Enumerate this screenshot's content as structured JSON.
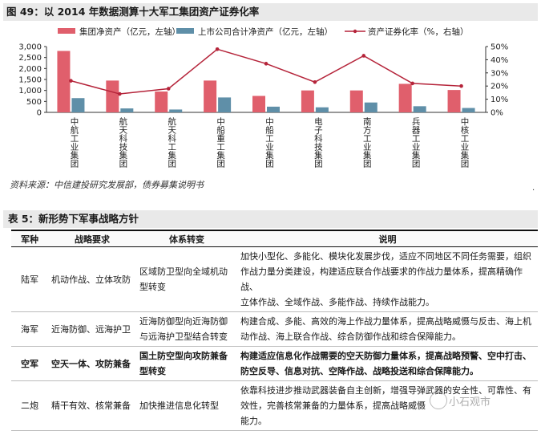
{
  "figure": {
    "title": "图 49：以 2014 年数据测算十大军工集团资产证券化率",
    "source": "资料来源：中信建投研究发展部，债券募集说明书",
    "side_mark": "·"
  },
  "chart_data": {
    "type": "bar",
    "title": "图 49：以 2014 年数据测算十大军工集团资产证券化率",
    "categories": [
      "中航工业集团",
      "航天科技集团",
      "航天科工集团",
      "中船重工集团",
      "中船工业集团",
      "电子科技集团",
      "南方工业集团",
      "兵器工业集团",
      "中核工业集团"
    ],
    "series": [
      {
        "name": "集团净资产（亿元，左轴）",
        "type": "bar",
        "axis": "left",
        "color": "#e05f6c",
        "values": [
          2800,
          1450,
          950,
          1450,
          750,
          1000,
          1000,
          1300,
          1020
        ]
      },
      {
        "name": "上市公司合计净资产（亿元，左轴）",
        "type": "bar",
        "axis": "left",
        "color": "#5f8fa8",
        "values": [
          650,
          180,
          130,
          680,
          260,
          230,
          450,
          280,
          200
        ]
      },
      {
        "name": "资产证券化率（%，右轴）",
        "type": "line",
        "axis": "right",
        "color": "#b5243a",
        "values": [
          24,
          14,
          18,
          48,
          37,
          23,
          43,
          22,
          20
        ]
      }
    ],
    "y_left": {
      "ylim": [
        0,
        3000
      ],
      "ticks": [
        "0",
        "500",
        "1,000",
        "1,500",
        "2,000",
        "2,500",
        "3,000"
      ]
    },
    "y_right": {
      "ylim": [
        0,
        50
      ],
      "ticks": [
        "0%",
        "10%",
        "20%",
        "30%",
        "40%",
        "50%"
      ]
    },
    "legend": "top"
  },
  "table": {
    "title": "表 5：新形势下军事战略方针",
    "headers": [
      "军种",
      "战略要求",
      "体系转变",
      "说明"
    ],
    "rows": [
      {
        "service": "陆军",
        "req": "机动作战、立体攻防",
        "change": [
          "区域防卫型向全域机动",
          "型转变"
        ],
        "note": [
          "加快小型化、多能化、模块化发展步伐，适应不同地区不同任务需要，组织",
          "作战力量分类建设，构建适应联合作战要求的作战力量体系，提高精确作战、",
          "立体作战、全域作战、多能作战、持续作战能力。"
        ],
        "bold": false
      },
      {
        "service": "海军",
        "req": "近海防御、远海护卫",
        "change": [
          "近海防御型向近海防御",
          "与远海护卫型结合转变"
        ],
        "note": [
          "构建合成、多能、高效的海上作战力量体系，提高战略威慑与反击、海上机",
          "动作战、海上联合作战、综合防御作战和综合保障能力。"
        ],
        "bold": false
      },
      {
        "service": "空军",
        "req": "空天一体、攻防兼备",
        "change": [
          "国土防空型向攻防兼备",
          "型转变"
        ],
        "note": [
          "构建适应信息化作战需要的空天防御力量体系，提高战略预警、空中打击、",
          "防空反导、信息对抗、空降作战、战略投送和综合保障能力。"
        ],
        "bold": true
      },
      {
        "service": "二炮",
        "req": "精干有效、核常兼备",
        "change": [
          "加快推进信息化转型"
        ],
        "note": [
          "依靠科技进步推动武器装备自主创新，增强导弹武器的安全性、可靠性、有",
          "效性，完善核常兼备的力量体系，提高战略威慑",
          "能力。"
        ],
        "bold": false
      }
    ]
  },
  "watermark": "小石观市"
}
